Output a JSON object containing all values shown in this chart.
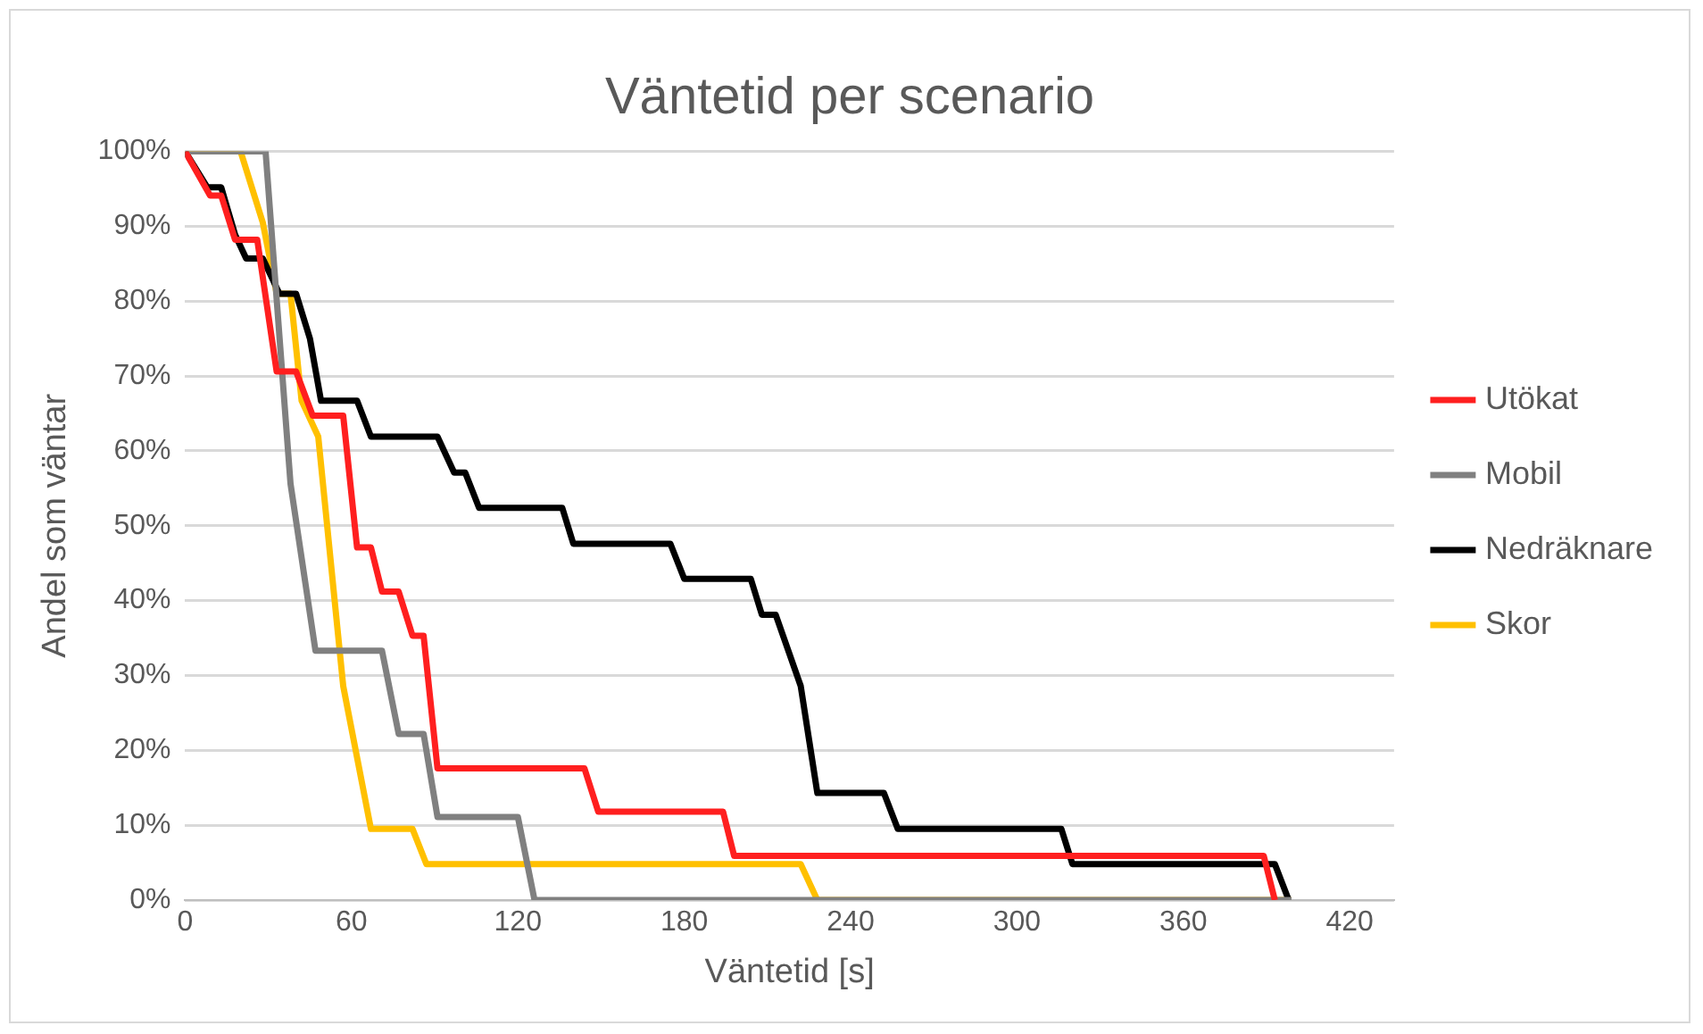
{
  "chart_data": {
    "type": "line",
    "title": "Väntetid per scenario",
    "xlabel": "Väntetid [s]",
    "ylabel": "Andel som väntar",
    "xlim": [
      0,
      436
    ],
    "xticks": [
      0,
      60,
      120,
      180,
      240,
      300,
      360,
      420
    ],
    "ylim": [
      0,
      100
    ],
    "yticks": [
      {
        "value": 0,
        "label": "0%"
      },
      {
        "value": 10,
        "label": "10%"
      },
      {
        "value": 20,
        "label": "20%"
      },
      {
        "value": 30,
        "label": "30%"
      },
      {
        "value": 40,
        "label": "40%"
      },
      {
        "value": 50,
        "label": "50%"
      },
      {
        "value": 60,
        "label": "60%"
      },
      {
        "value": 70,
        "label": "70%"
      },
      {
        "value": 80,
        "label": "80%"
      },
      {
        "value": 90,
        "label": "90%"
      },
      {
        "value": 100,
        "label": "100%"
      }
    ],
    "grid": "y",
    "legend": "right",
    "marker": "none",
    "line_style": "solid",
    "series": [
      {
        "name": "Utökat",
        "color": "#ff1f1f",
        "x": [
          0,
          9,
          13,
          18,
          26,
          33,
          40,
          46,
          57,
          62,
          67,
          71,
          77,
          82,
          86,
          91,
          144,
          149,
          194,
          198,
          389,
          393
        ],
        "values": [
          100,
          94.1,
          94.1,
          88.2,
          88.2,
          70.6,
          70.6,
          64.7,
          64.7,
          47.1,
          47.1,
          41.2,
          41.2,
          35.3,
          35.3,
          17.6,
          17.6,
          11.8,
          11.8,
          5.9,
          5.9,
          0
        ]
      },
      {
        "name": "Mobil",
        "color": "#808080",
        "x": [
          0,
          29,
          38,
          47,
          71,
          77,
          86,
          91,
          120,
          126,
          399
        ],
        "values": [
          100,
          100,
          55.6,
          33.3,
          33.3,
          22.2,
          22.2,
          11.1,
          11.1,
          0,
          0
        ]
      },
      {
        "name": "Nedräknare",
        "color": "#000000",
        "x": [
          0,
          8,
          13,
          18,
          22,
          28,
          34,
          40,
          45,
          49,
          62,
          67,
          91,
          97,
          101,
          106,
          136,
          140,
          175,
          180,
          204,
          208,
          213,
          222,
          228,
          252,
          257,
          316,
          320,
          393,
          398
        ],
        "values": [
          100,
          95.2,
          95.2,
          88.9,
          85.7,
          85.7,
          81,
          81,
          75,
          66.7,
          66.7,
          61.9,
          61.9,
          57.1,
          57.1,
          52.4,
          52.4,
          47.6,
          47.6,
          42.9,
          42.9,
          38.1,
          38.1,
          28.6,
          14.3,
          14.3,
          9.5,
          9.5,
          4.8,
          4.8,
          0
        ]
      },
      {
        "name": "Skor",
        "color": "#ffc000",
        "x": [
          0,
          20,
          28,
          33,
          38,
          42,
          48,
          57,
          67,
          82,
          87,
          222,
          228,
          399
        ],
        "values": [
          100,
          100,
          90.5,
          81,
          81,
          66.7,
          61.9,
          28.6,
          9.5,
          9.5,
          4.8,
          4.8,
          0,
          0
        ]
      }
    ]
  }
}
